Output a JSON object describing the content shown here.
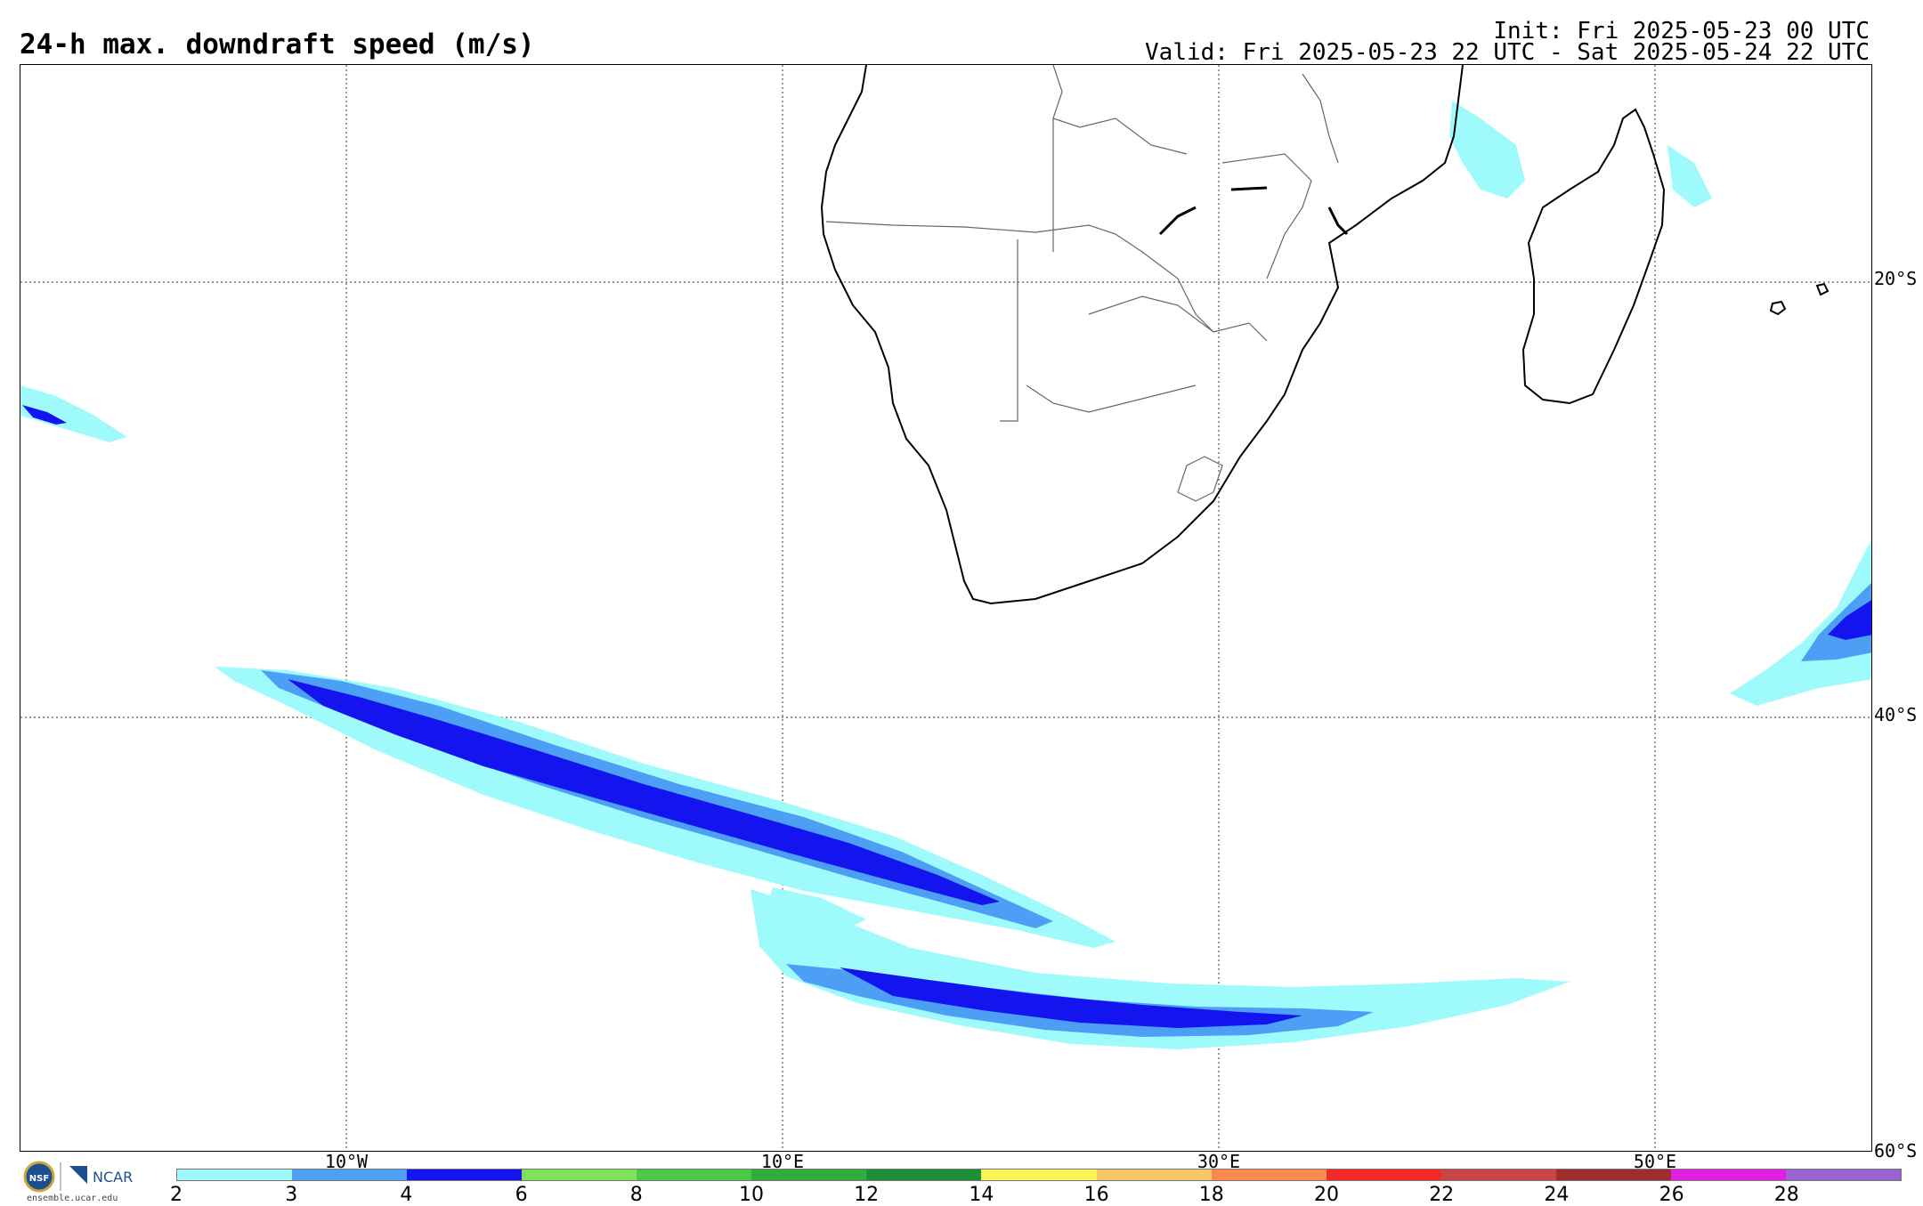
{
  "header": {
    "title": "24-h max. downdraft speed (m/s)",
    "init": "Init: Fri 2025-05-23 00 UTC",
    "valid": "Valid: Fri 2025-05-23 22 UTC - Sat 2025-05-24 22 UTC"
  },
  "map": {
    "lat_labels": [
      "20°S",
      "40°S",
      "60°S"
    ],
    "lon_labels": [
      "10°W",
      "10°E",
      "30°E",
      "50°E"
    ],
    "coast_color": "#000000",
    "grid_style": "dotted"
  },
  "colorbar": {
    "ticks": [
      "2",
      "3",
      "4",
      "6",
      "8",
      "10",
      "12",
      "14",
      "16",
      "18",
      "20",
      "22",
      "24",
      "26",
      "28"
    ],
    "colors": [
      "#9ffbfb",
      "#4d9ff5",
      "#1414ef",
      "#7fe05a",
      "#4dc84a",
      "#2fae3e",
      "#1f8f38",
      "#fbf55a",
      "#fac66a",
      "#f88a4f",
      "#f22929",
      "#c84545",
      "#a02d2d",
      "#e01ee0",
      "#9a62cf"
    ]
  },
  "logo": {
    "nsf": "NSF",
    "ncar": "NCAR",
    "url": "ensemble.ucar.edu"
  }
}
